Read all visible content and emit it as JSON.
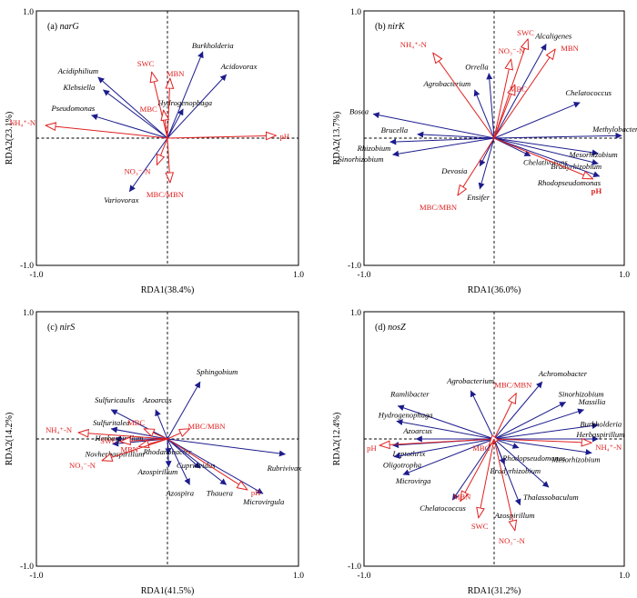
{
  "chart_data": [
    {
      "type": "scatter",
      "panel_label": "(a)",
      "gene": "narG",
      "xlabel": "RDA1(38.4%)",
      "ylabel": "RDA2(23.1%)",
      "xlim": [
        -1.0,
        1.0
      ],
      "ylim": [
        -1.0,
        1.0
      ],
      "ticks": {
        "xmin": "-1.0",
        "xmax": "1.0",
        "ymin": "-1.0",
        "ymax": "1.0"
      },
      "species_color": "#1c1c8c",
      "env_color": "#e02020",
      "species": [
        {
          "name": "Burkholderia",
          "x": 0.27,
          "y": 0.68,
          "label": "Burkholderia"
        },
        {
          "name": "Acidovorax",
          "x": 0.45,
          "y": 0.5,
          "label": "Acidovorax"
        },
        {
          "name": "Hydrogenophaga",
          "x": 0.12,
          "y": 0.23,
          "label": "Hydrogenophaga"
        },
        {
          "name": "Acidiphilium",
          "x": -0.53,
          "y": 0.48,
          "label": "Acidiphilium"
        },
        {
          "name": "Klebsiella",
          "x": -0.49,
          "y": 0.38,
          "label": "Klebsiella"
        },
        {
          "name": "Pseudomonas",
          "x": -0.58,
          "y": 0.18,
          "label": "Pseudomonas"
        },
        {
          "name": "Variovorax",
          "x": -0.29,
          "y": -0.42,
          "label": "Variovorax"
        }
      ],
      "env": [
        {
          "name": "pH",
          "x": 0.83,
          "y": 0.02,
          "label": "pH"
        },
        {
          "name": "NH4+-N",
          "x": -0.93,
          "y": 0.1,
          "label": "NH₄⁺-N"
        },
        {
          "name": "SWC",
          "x": -0.12,
          "y": 0.52,
          "label": "SWC"
        },
        {
          "name": "MBN",
          "x": 0.02,
          "y": 0.47,
          "label": "MBN"
        },
        {
          "name": "MBC",
          "x": -0.03,
          "y": 0.22,
          "label": "MBC"
        },
        {
          "name": "NO3--N",
          "x": -0.08,
          "y": -0.21,
          "label": "NO₃⁻-N"
        },
        {
          "name": "MBC/MBN",
          "x": 0.02,
          "y": -0.35,
          "label": "MBC/MBN"
        }
      ]
    },
    {
      "type": "scatter",
      "panel_label": "(b)",
      "gene": "nirK",
      "xlabel": "RDA1(36.0%)",
      "ylabel": "RDA2(13.7%)",
      "xlim": [
        -1.0,
        1.0
      ],
      "ylim": [
        -1.0,
        1.0
      ],
      "ticks": {
        "xmin": "-1.0",
        "xmax": "1.0",
        "ymin": "-1.0",
        "ymax": "1.0"
      },
      "species_color": "#1c1c8c",
      "env_color": "#e02020",
      "species": [
        {
          "name": "Alcaligenes",
          "x": 0.4,
          "y": 0.74,
          "label": "Alcaligenes"
        },
        {
          "name": "Orrella",
          "x": -0.04,
          "y": 0.51,
          "label": "Orrella"
        },
        {
          "name": "Agrobacterium",
          "x": -0.15,
          "y": 0.38,
          "label": "Agrobacterium"
        },
        {
          "name": "Chelatococcus",
          "x": 0.66,
          "y": 0.28,
          "label": "Chelatococcus"
        },
        {
          "name": "Bosea",
          "x": -0.93,
          "y": 0.19,
          "label": "Bosea"
        },
        {
          "name": "Brucella",
          "x": -0.59,
          "y": 0.03,
          "label": "Brucella"
        },
        {
          "name": "Rhizobium",
          "x": -0.8,
          "y": -0.03,
          "label": "Rhizobium"
        },
        {
          "name": "Sinorhizobium",
          "x": -0.78,
          "y": -0.13,
          "label": "Sinorhizobium"
        },
        {
          "name": "Methylobacterium",
          "x": 0.98,
          "y": 0.02,
          "label": "Methylobacterium"
        },
        {
          "name": "Mesorhizobium",
          "x": 0.8,
          "y": -0.12,
          "label": "Mesorhizobium"
        },
        {
          "name": "Bradyrhizobium",
          "x": 0.8,
          "y": -0.2,
          "label": "Bradyrhizobium"
        },
        {
          "name": "Chelativorans",
          "x": 0.28,
          "y": -0.14,
          "label": "Chelativorans"
        },
        {
          "name": "Rhodopseudomonas",
          "x": 0.81,
          "y": -0.3,
          "label": "Rhodopseudomonas"
        },
        {
          "name": "Devosia",
          "x": -0.11,
          "y": -0.22,
          "label": "Devosia"
        },
        {
          "name": "Ensifer",
          "x": -0.11,
          "y": -0.4,
          "label": "Ensifer"
        }
      ],
      "env": [
        {
          "name": "NH4+-N",
          "x": -0.47,
          "y": 0.67,
          "label": "NH₄⁺-N",
          "bold": false
        },
        {
          "name": "SWC",
          "x": 0.26,
          "y": 0.78,
          "label": "SWC",
          "bold": false
        },
        {
          "name": "NO3--N",
          "x": 0.13,
          "y": 0.62,
          "label": "NO₃⁻-N",
          "bold": false
        },
        {
          "name": "MBN",
          "x": 0.47,
          "y": 0.7,
          "label": "MBN",
          "bold": false
        },
        {
          "name": "MBC",
          "x": 0.16,
          "y": 0.42,
          "label": "MBC",
          "bold": false
        },
        {
          "name": "pH",
          "x": 0.76,
          "y": -0.32,
          "label": "pH",
          "bold": true
        },
        {
          "name": "MBC/MBN",
          "x": -0.28,
          "y": -0.45,
          "label": "MBC/MBN",
          "bold": false
        }
      ]
    },
    {
      "type": "scatter",
      "panel_label": "(c)",
      "gene": "nirS",
      "xlabel": "RDA1(41.5%)",
      "ylabel": "RDA2(14.2%)",
      "xlim": [
        -1.0,
        1.0
      ],
      "ylim": [
        -1.0,
        1.0
      ],
      "ticks": {
        "xmin": "-1.0",
        "xmax": "1.0",
        "ymin": "-1.0",
        "ymax": "1.0"
      },
      "species_color": "#1c1c8c",
      "env_color": "#e02020",
      "species": [
        {
          "name": "Sphingobium",
          "x": 0.25,
          "y": 0.45,
          "label": "Sphingobium"
        },
        {
          "name": "Sulfuricaulis",
          "x": -0.43,
          "y": 0.23,
          "label": "Sulfuricaulis"
        },
        {
          "name": "Azoarcus",
          "x": -0.09,
          "y": 0.23,
          "label": "Azoarcus"
        },
        {
          "name": "Sulfuritalea",
          "x": -0.43,
          "y": 0.08,
          "label": "Sulfuritalea"
        },
        {
          "name": "Herbaspirillum",
          "x": -0.4,
          "y": 0.0,
          "label": "Herbaspirillum"
        },
        {
          "name": "Novherbaspirillum",
          "x": -0.42,
          "y": -0.04,
          "label": "Novherbaspirillum"
        },
        {
          "name": "Rubrivivax",
          "x": 0.9,
          "y": -0.12,
          "label": "Rubrivivax"
        },
        {
          "name": "Rhodanobacter",
          "x": 0.01,
          "y": -0.12,
          "label": "Rhodanobacter"
        },
        {
          "name": "Cupriavidus",
          "x": 0.25,
          "y": -0.23,
          "label": "Cupriavidus"
        },
        {
          "name": "Azospirillum",
          "x": 0.01,
          "y": -0.22,
          "label": "Azospirillum"
        },
        {
          "name": "Azospira",
          "x": 0.17,
          "y": -0.36,
          "label": "Azospira"
        },
        {
          "name": "Thauera",
          "x": 0.45,
          "y": -0.36,
          "label": "Thauera"
        },
        {
          "name": "Microvirgula",
          "x": 0.73,
          "y": -0.43,
          "label": "Microvirgula"
        }
      ],
      "env": [
        {
          "name": "NH4+-N",
          "x": -0.68,
          "y": 0.05,
          "label": "NH₄⁺-N"
        },
        {
          "name": "MBC",
          "x": -0.18,
          "y": 0.08,
          "label": "MBC"
        },
        {
          "name": "MBC/MBN",
          "x": 0.17,
          "y": 0.08,
          "label": "MBC/MBN"
        },
        {
          "name": "SWC",
          "x": -0.36,
          "y": -0.02,
          "label": "SWC"
        },
        {
          "name": "MBN",
          "x": -0.22,
          "y": -0.06,
          "label": "MBN"
        },
        {
          "name": "NO3--N",
          "x": -0.5,
          "y": -0.17,
          "label": "NO₃⁻-N"
        },
        {
          "name": "pH",
          "x": 0.61,
          "y": -0.4,
          "label": "pH"
        }
      ]
    },
    {
      "type": "scatter",
      "panel_label": "(d)",
      "gene": "nosZ",
      "xlabel": "RDA1(31.2%)",
      "ylabel": "RDA2(12.4%)",
      "xlim": [
        -1.0,
        1.0
      ],
      "ylim": [
        -1.0,
        1.0
      ],
      "ticks": {
        "xmin": "-1.0",
        "xmax": "1.0",
        "ymin": "-1.0",
        "ymax": "1.0"
      },
      "species_color": "#1c1c8c",
      "env_color": "#e02020",
      "species": [
        {
          "name": "Agrobacterium",
          "x": -0.18,
          "y": 0.38,
          "label": "Agrobacterium"
        },
        {
          "name": "Achromobacter",
          "x": 0.37,
          "y": 0.45,
          "label": "Achromobacter"
        },
        {
          "name": "Ramlibacter",
          "x": -0.74,
          "y": 0.26,
          "label": "Ramlibacter"
        },
        {
          "name": "Sinorhizobium",
          "x": 0.55,
          "y": 0.29,
          "label": "Sinorhizobium"
        },
        {
          "name": "Massilia",
          "x": 0.69,
          "y": 0.23,
          "label": "Massilia"
        },
        {
          "name": "Hydrogenophaga",
          "x": -0.75,
          "y": 0.14,
          "label": "Hydrogenophaga"
        },
        {
          "name": "Burkholderia",
          "x": 0.8,
          "y": 0.11,
          "label": "Burkholderia"
        },
        {
          "name": "Azoarcus",
          "x": -0.6,
          "y": 0.0,
          "label": "Azoarcus"
        },
        {
          "name": "Herbaspirillum",
          "x": 0.8,
          "y": 0.0,
          "label": "Herbaspirillum"
        },
        {
          "name": "Leptothrix",
          "x": -0.78,
          "y": -0.05,
          "label": "Leptothrix"
        },
        {
          "name": "Rhodopseudomonas",
          "x": 0.19,
          "y": -0.07,
          "label": "Rhodopseudomonas"
        },
        {
          "name": "Oligotropha",
          "x": -0.77,
          "y": -0.14,
          "label": "Oligotropha"
        },
        {
          "name": "Mesorhizobium",
          "x": 0.75,
          "y": -0.11,
          "label": "Mesorhizobium"
        },
        {
          "name": "Bradyrhizobium",
          "x": 0.08,
          "y": -0.2,
          "label": "Bradyrhizobium"
        },
        {
          "name": "Microvirga",
          "x": -0.7,
          "y": -0.28,
          "label": "Microvirga"
        },
        {
          "name": "Thalassobaculum",
          "x": 0.42,
          "y": -0.38,
          "label": "Thalassobaculum"
        },
        {
          "name": "Chelatococcus",
          "x": -0.32,
          "y": -0.48,
          "label": "Chelatococcus"
        },
        {
          "name": "Azospirillum",
          "x": 0.2,
          "y": -0.52,
          "label": "Azospirillum"
        }
      ],
      "env": [
        {
          "name": "MBC/MBN",
          "x": 0.17,
          "y": 0.36,
          "label": "MBC/MBN"
        },
        {
          "name": "NH4+-N",
          "x": 0.75,
          "y": -0.03,
          "label": "NH₄⁺-N"
        },
        {
          "name": "pH",
          "x": -0.88,
          "y": -0.05,
          "label": "pH"
        },
        {
          "name": "MBC",
          "x": -0.04,
          "y": -0.05,
          "label": "MBC"
        },
        {
          "name": "MBN",
          "x": -0.26,
          "y": -0.49,
          "label": "MBN"
        },
        {
          "name": "SWC",
          "x": -0.12,
          "y": -0.62,
          "label": "SWC"
        },
        {
          "name": "NO3--N",
          "x": 0.16,
          "y": -0.72,
          "label": "NO₃⁻-N"
        }
      ]
    }
  ]
}
